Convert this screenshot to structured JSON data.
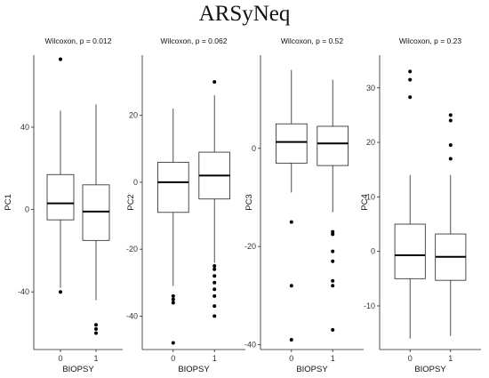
{
  "title": "ARSyNeq",
  "chart_data": [
    {
      "type": "box",
      "title": "Wilcoxon, p = 0.012",
      "xlabel": "BIOPSY",
      "ylabel": "PC1",
      "ylim": [
        -68,
        75
      ],
      "yticks": [
        -40,
        0,
        40
      ],
      "categories": [
        "0",
        "1"
      ],
      "boxes": [
        {
          "category": "0",
          "q1": -5,
          "median": 3,
          "q3": 17,
          "whisker_low": -38,
          "whisker_high": 48,
          "outliers": [
            73,
            -40
          ]
        },
        {
          "category": "1",
          "q1": -15,
          "median": -1,
          "q3": 12,
          "whisker_low": -44,
          "whisker_high": 51,
          "outliers": [
            -56,
            -58,
            -60
          ]
        }
      ]
    },
    {
      "type": "box",
      "title": "Wilcoxon, p = 0.062",
      "xlabel": "BIOPSY",
      "ylabel": "PC2",
      "ylim": [
        -50,
        38
      ],
      "yticks": [
        -40,
        -20,
        0,
        20
      ],
      "categories": [
        "0",
        "1"
      ],
      "boxes": [
        {
          "category": "0",
          "q1": -9,
          "median": 0,
          "q3": 6,
          "whisker_low": -31,
          "whisker_high": 22,
          "outliers": [
            -34,
            -35,
            -36,
            -48
          ]
        },
        {
          "category": "1",
          "q1": -5,
          "median": 2,
          "q3": 9,
          "whisker_low": -24,
          "whisker_high": 26,
          "outliers": [
            30,
            -25,
            -26,
            -28,
            -30,
            -32,
            -34,
            -37,
            -40
          ]
        }
      ]
    },
    {
      "type": "box",
      "title": "Wilcoxon, p = 0.52",
      "xlabel": "BIOPSY",
      "ylabel": "PC3",
      "ylim": [
        -41,
        19
      ],
      "yticks": [
        -40,
        -20,
        0
      ],
      "categories": [
        "0",
        "1"
      ],
      "boxes": [
        {
          "category": "0",
          "q1": -3,
          "median": 1.3,
          "q3": 5,
          "whisker_low": -9,
          "whisker_high": 16,
          "outliers": [
            -15,
            -28,
            -39
          ]
        },
        {
          "category": "1",
          "q1": -3.5,
          "median": 1,
          "q3": 4.5,
          "whisker_low": -13,
          "whisker_high": 14,
          "outliers": [
            -17,
            -17.5,
            -21,
            -23,
            -27,
            -28,
            -37
          ]
        }
      ]
    },
    {
      "type": "box",
      "title": "Wilcoxon, p = 0.23",
      "xlabel": "BIOPSY",
      "ylabel": "PC4",
      "ylim": [
        -18,
        36
      ],
      "yticks": [
        -10,
        0,
        10,
        20,
        30
      ],
      "categories": [
        "0",
        "1"
      ],
      "boxes": [
        {
          "category": "0",
          "q1": -5,
          "median": -0.7,
          "q3": 5,
          "whisker_low": -16,
          "whisker_high": 14,
          "outliers": [
            33,
            31.5,
            28.3
          ]
        },
        {
          "category": "1",
          "q1": -5.3,
          "median": -1,
          "q3": 3.2,
          "whisker_low": -15.5,
          "whisker_high": 14,
          "outliers": [
            25,
            24,
            19.5,
            17
          ]
        }
      ]
    }
  ]
}
